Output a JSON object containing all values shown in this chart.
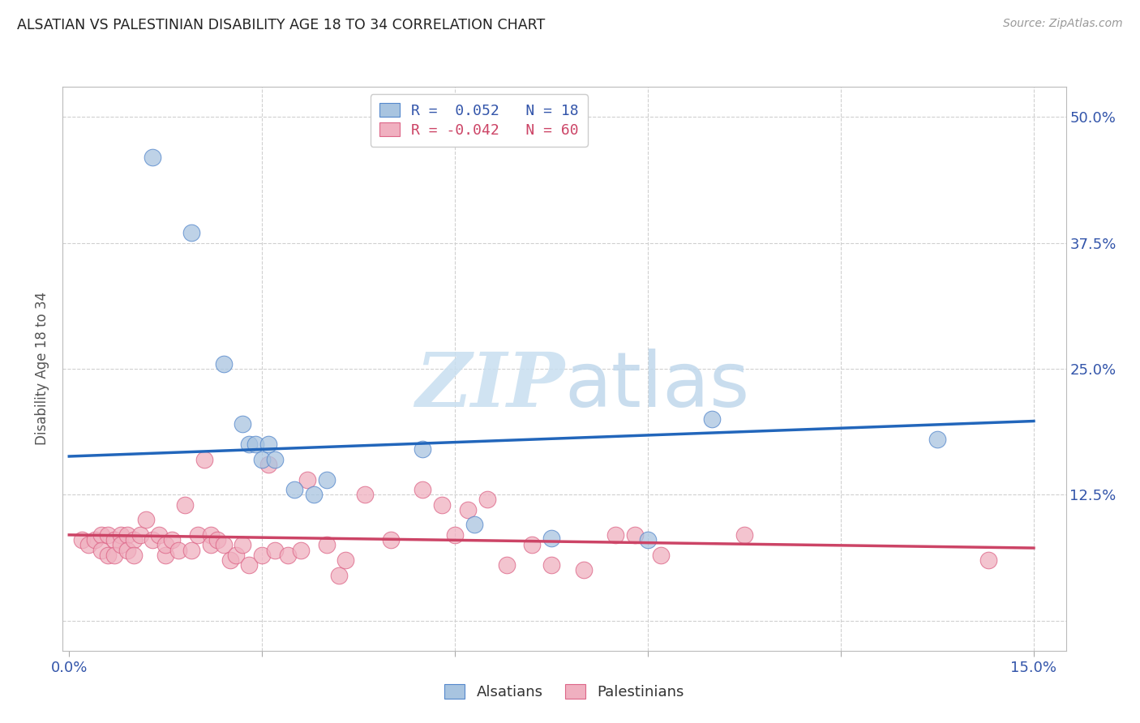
{
  "title": "ALSATIAN VS PALESTINIAN DISABILITY AGE 18 TO 34 CORRELATION CHART",
  "source": "Source: ZipAtlas.com",
  "ylabel": "Disability Age 18 to 34",
  "xlim": [
    -0.001,
    0.155
  ],
  "ylim": [
    -0.03,
    0.53
  ],
  "xticks": [
    0.0,
    0.03,
    0.06,
    0.09,
    0.12,
    0.15
  ],
  "xticklabels": [
    "0.0%",
    "",
    "",
    "",
    "",
    "15.0%"
  ],
  "yticks_right": [
    0.0,
    0.125,
    0.25,
    0.375,
    0.5
  ],
  "ytick_right_labels": [
    "",
    "12.5%",
    "25.0%",
    "37.5%",
    "50.0%"
  ],
  "blue_R": 0.052,
  "blue_N": 18,
  "pink_R": -0.042,
  "pink_N": 60,
  "blue_color": "#a8c4e0",
  "pink_color": "#f0b0c0",
  "blue_edge_color": "#5588cc",
  "pink_edge_color": "#dd6688",
  "blue_line_color": "#2266bb",
  "pink_line_color": "#cc4466",
  "legend_label_blue": "Alsatians",
  "legend_label_pink": "Palestinians",
  "background_color": "#ffffff",
  "grid_color": "#d0d0d0",
  "title_color": "#222222",
  "axis_label_color": "#3355aa",
  "blue_x": [
    0.013,
    0.019,
    0.024,
    0.027,
    0.028,
    0.029,
    0.03,
    0.031,
    0.032,
    0.035,
    0.038,
    0.04,
    0.055,
    0.063,
    0.075,
    0.09,
    0.1,
    0.135
  ],
  "blue_y": [
    0.46,
    0.385,
    0.255,
    0.195,
    0.175,
    0.175,
    0.16,
    0.175,
    0.16,
    0.13,
    0.125,
    0.14,
    0.17,
    0.095,
    0.082,
    0.08,
    0.2,
    0.18
  ],
  "pink_x": [
    0.002,
    0.003,
    0.004,
    0.005,
    0.005,
    0.006,
    0.006,
    0.007,
    0.007,
    0.008,
    0.008,
    0.009,
    0.009,
    0.01,
    0.01,
    0.011,
    0.012,
    0.013,
    0.014,
    0.015,
    0.015,
    0.016,
    0.017,
    0.018,
    0.019,
    0.02,
    0.021,
    0.022,
    0.022,
    0.023,
    0.024,
    0.025,
    0.026,
    0.027,
    0.028,
    0.03,
    0.031,
    0.032,
    0.034,
    0.036,
    0.037,
    0.04,
    0.042,
    0.043,
    0.046,
    0.05,
    0.055,
    0.058,
    0.06,
    0.062,
    0.065,
    0.068,
    0.072,
    0.075,
    0.08,
    0.085,
    0.088,
    0.092,
    0.105,
    0.143
  ],
  "pink_y": [
    0.08,
    0.075,
    0.08,
    0.085,
    0.07,
    0.085,
    0.065,
    0.08,
    0.065,
    0.085,
    0.075,
    0.085,
    0.07,
    0.08,
    0.065,
    0.085,
    0.1,
    0.08,
    0.085,
    0.065,
    0.075,
    0.08,
    0.07,
    0.115,
    0.07,
    0.085,
    0.16,
    0.085,
    0.075,
    0.08,
    0.075,
    0.06,
    0.065,
    0.075,
    0.055,
    0.065,
    0.155,
    0.07,
    0.065,
    0.07,
    0.14,
    0.075,
    0.045,
    0.06,
    0.125,
    0.08,
    0.13,
    0.115,
    0.085,
    0.11,
    0.12,
    0.055,
    0.075,
    0.055,
    0.05,
    0.085,
    0.085,
    0.065,
    0.085,
    0.06
  ],
  "blue_trend_x0": 0.0,
  "blue_trend_y0": 0.163,
  "blue_trend_x1": 0.15,
  "blue_trend_y1": 0.198,
  "pink_trend_x0": 0.0,
  "pink_trend_y0": 0.085,
  "pink_trend_x1": 0.15,
  "pink_trend_y1": 0.072
}
